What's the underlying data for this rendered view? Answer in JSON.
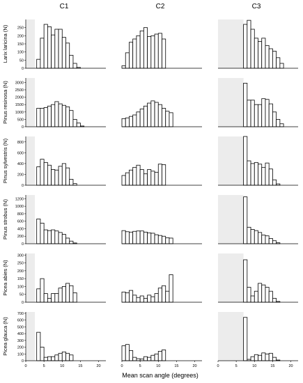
{
  "chart_data": {
    "type": "bar",
    "subtype": "histogram-grid",
    "xlabel": "Mean scan angle (degrees)",
    "xlim": [
      0,
      22
    ],
    "x_ticks": [
      0,
      5,
      10,
      15,
      20
    ],
    "bin_width": 1,
    "bar_color": "#ffffff",
    "edge_color": "#000000",
    "shade_color": "#ececec",
    "columns": [
      "C1",
      "C2",
      "C3"
    ],
    "shaded_region": {
      "C1": [
        0,
        2.5
      ],
      "C2": null,
      "C3": [
        0,
        7
      ]
    },
    "rows": [
      {
        "label": "Larix laricina (N)",
        "y_ticks": [
          0,
          50,
          100,
          150,
          200,
          250
        ],
        "ylim": [
          0,
          300
        ],
        "panels": {
          "C1": {
            "start": 3,
            "values": [
              55,
              185,
              270,
              255,
              205,
              240,
              240,
              190,
              155,
              80,
              30,
              5
            ]
          },
          "C2": {
            "start": 0,
            "values": [
              15,
              95,
              160,
              180,
              200,
              230,
              250,
              195,
              200,
              210,
              215,
              180
            ]
          },
          "C3": {
            "start": 7,
            "values": [
              270,
              295,
              240,
              185,
              165,
              185,
              140,
              120,
              105,
              65,
              30
            ]
          }
        }
      },
      {
        "label": "Pinus resinosa (N)",
        "y_ticks": [
          0,
          500,
          1000,
          1500,
          2000,
          2500,
          3000
        ],
        "ylim": [
          0,
          3300
        ],
        "panels": {
          "C1": {
            "start": 3,
            "values": [
              1250,
              1250,
              1300,
              1400,
              1500,
              1700,
              1550,
              1450,
              1350,
              1100,
              500,
              250,
              50
            ]
          },
          "C2": {
            "start": 0,
            "values": [
              550,
              600,
              700,
              800,
              1000,
              1200,
              1400,
              1600,
              1750,
              1650,
              1500,
              1250,
              1050,
              950
            ]
          },
          "C3": {
            "start": 7,
            "values": [
              2950,
              1800,
              1800,
              1500,
              1500,
              1900,
              1850,
              1550,
              1000,
              500,
              200
            ]
          }
        }
      },
      {
        "label": "Pinus sylvestris (N)",
        "y_ticks": [
          0,
          200,
          400,
          600,
          800
        ],
        "ylim": [
          0,
          900
        ],
        "panels": {
          "C1": {
            "start": 3,
            "values": [
              340,
              480,
              420,
              370,
              290,
              280,
              350,
              400,
              320,
              110,
              30
            ]
          },
          "C2": {
            "start": 0,
            "values": [
              180,
              230,
              280,
              330,
              370,
              290,
              210,
              290,
              260,
              240,
              390,
              380
            ]
          },
          "C3": {
            "start": 7,
            "values": [
              900,
              450,
              400,
              420,
              390,
              330,
              410,
              300,
              100,
              25
            ]
          }
        }
      },
      {
        "label": "Pinus strobus (N)",
        "y_ticks": [
          0,
          200,
          400,
          600,
          800,
          1000,
          1200
        ],
        "ylim": [
          0,
          1300
        ],
        "panels": {
          "C1": {
            "start": 3,
            "values": [
              660,
              550,
              370,
              350,
              370,
              340,
              300,
              250,
              150,
              70,
              20
            ]
          },
          "C2": {
            "start": 0,
            "values": [
              350,
              320,
              310,
              330,
              340,
              340,
              310,
              290,
              280,
              240,
              220,
              200,
              160,
              150
            ]
          },
          "C3": {
            "start": 7,
            "values": [
              1250,
              440,
              380,
              350,
              300,
              230,
              210,
              140,
              80,
              25
            ]
          }
        }
      },
      {
        "label": "Picea abies (N)",
        "y_ticks": [
          0,
          50,
          100,
          150,
          200,
          250,
          300
        ],
        "ylim": [
          0,
          310
        ],
        "panels": {
          "C1": {
            "start": 3,
            "values": [
              85,
              150,
              55,
              25,
              55,
              55,
              90,
              100,
              120,
              105,
              60
            ]
          },
          "C2": {
            "start": 0,
            "values": [
              65,
              60,
              75,
              45,
              30,
              40,
              25,
              45,
              35,
              55,
              90,
              105,
              70,
              175
            ]
          },
          "C3": {
            "start": 7,
            "values": [
              270,
              95,
              40,
              70,
              120,
              110,
              95,
              70,
              25,
              5
            ]
          }
        }
      },
      {
        "label": "Picea glauca (N)",
        "y_ticks": [
          0,
          100,
          200,
          300,
          400,
          500,
          600,
          700
        ],
        "ylim": [
          0,
          720
        ],
        "panels": {
          "C1": {
            "start": 3,
            "values": [
              420,
              200,
              50,
              60,
              60,
              85,
              110,
              130,
              110,
              85
            ]
          },
          "C2": {
            "start": 0,
            "values": [
              220,
              240,
              150,
              50,
              30,
              25,
              60,
              50,
              80,
              100,
              140,
              160
            ]
          },
          "C3": {
            "start": 7,
            "values": [
              640,
              20,
              60,
              90,
              80,
              115,
              100,
              110,
              50,
              10
            ]
          }
        }
      }
    ]
  }
}
